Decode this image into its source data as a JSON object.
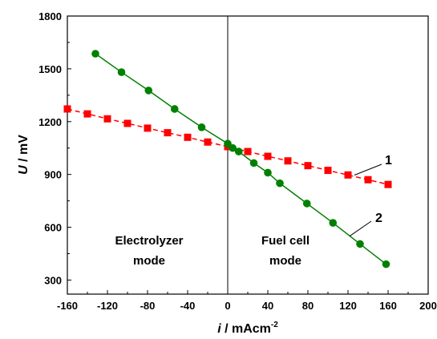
{
  "chart_data": {
    "type": "line",
    "title": "",
    "xlabel": {
      "symbol": "i",
      "unit": " / mAcm",
      "exponent": "-2"
    },
    "ylabel": {
      "symbol": "U",
      "unit": " / mV"
    },
    "xlim": [
      -160,
      200
    ],
    "ylim": [
      220,
      1800
    ],
    "xticks": [
      -160,
      -120,
      -80,
      -40,
      0,
      40,
      80,
      120,
      160,
      200
    ],
    "yticks": [
      300,
      600,
      900,
      1200,
      1500,
      1800
    ],
    "grid": false,
    "zero_line_x": 0,
    "region_labels": [
      {
        "lines": [
          "Electrolyzer",
          "mode"
        ]
      },
      {
        "lines": [
          "Fuel cell",
          "mode"
        ]
      }
    ],
    "series": [
      {
        "name": "1",
        "color": "#ff0000",
        "marker": "square",
        "line_style": "dashed",
        "x": [
          -160,
          -140,
          -120,
          -100,
          -80,
          -60,
          -40,
          -20,
          0,
          20,
          40,
          60,
          80,
          100,
          120,
          140,
          160
        ],
        "y": [
          1272,
          1244,
          1216,
          1190,
          1163,
          1137,
          1111,
          1084,
          1058,
          1030,
          1003,
          977,
          950,
          923,
          897,
          870,
          843
        ]
      },
      {
        "name": "2",
        "color": "#008000",
        "marker": "circle",
        "line_style": "solid",
        "x": [
          -132,
          -106,
          -79,
          -53,
          -26,
          0,
          5,
          11,
          26,
          40,
          52,
          79,
          105,
          132,
          158
        ],
        "y": [
          1586,
          1481,
          1377,
          1272,
          1168,
          1075,
          1050,
          1030,
          965,
          910,
          850,
          735,
          625,
          505,
          390
        ]
      }
    ]
  }
}
